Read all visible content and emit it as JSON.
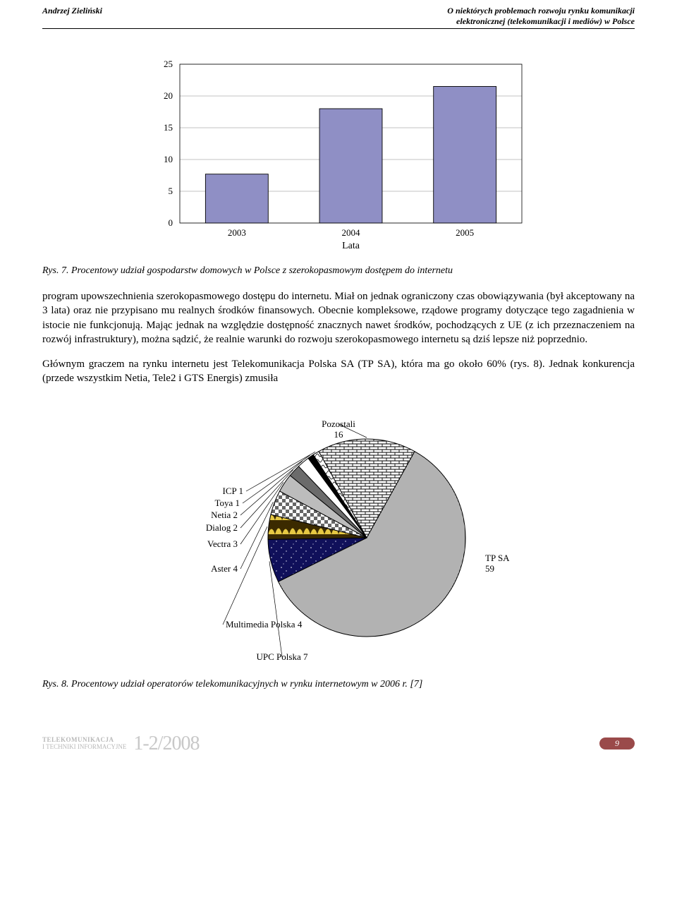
{
  "header": {
    "author": "Andrzej Zieliński",
    "title_line1": "O niektórych problemach rozwoju rynku komunikacji",
    "title_line2": "elektronicznej (telekomunikacji i mediów) w Polsce"
  },
  "bar_chart": {
    "type": "bar",
    "categories": [
      "2003",
      "2004",
      "2005"
    ],
    "values": [
      7.7,
      18,
      21.5
    ],
    "ylim": [
      0,
      25
    ],
    "ytick_step": 5,
    "yticks": [
      "0",
      "5",
      "10",
      "15",
      "20",
      "25"
    ],
    "xlabel": "Lata",
    "bar_fill": "#8f8fc5",
    "bar_stroke": "#000000",
    "grid_color": "#888888",
    "background_color": "#ffffff",
    "bar_width": 0.55,
    "label_fontsize": 13
  },
  "fig7": {
    "label": "Rys. 7.",
    "caption": "Procentowy udział gospodarstw domowych w Polsce z szerokopasmowym dostępem do internetu"
  },
  "para1": "program upowszechnienia szerokopasmowego dostępu do internetu. Miał on jednak ograniczony czas obowiązywania (był akceptowany na 3 lata) oraz nie przypisano mu realnych środków finansowych. Obecnie kompleksowe, rządowe programy dotyczące tego zagadnienia w istocie nie funkcjonują. Mając jednak na względzie dostępność znacznych nawet środków, pochodzących z UE (z ich przeznaczeniem na rozwój infrastruktury), można sądzić, że realnie warunki do rozwoju szerokopasmowego internetu są dziś lepsze niż poprzednio.",
  "para2": "Głównym graczem na rynku internetu jest Telekomunikacja Polska SA (TP SA), która ma go około 60% (rys. 8). Jednak konkurencja (przede wszystkim Netia, Tele2 i GTS Energis) zmusiła",
  "pie_chart": {
    "type": "pie",
    "slices": [
      {
        "label": "Pozostali",
        "value": 16,
        "text": "Pozostali\n16"
      },
      {
        "label": "TP SA",
        "value": 59,
        "text": "TP SA\n59"
      },
      {
        "label": "UPC Polska",
        "value": 7,
        "text": "UPC Polska 7"
      },
      {
        "label": "Multimedia Polska",
        "value": 4,
        "text": "Multimedia Polska 4"
      },
      {
        "label": "Aster",
        "value": 4,
        "text": "Aster 4"
      },
      {
        "label": "Vectra",
        "value": 3,
        "text": "Vectra 3"
      },
      {
        "label": "Dialog",
        "value": 2,
        "text": "Dialog 2"
      },
      {
        "label": "Netia",
        "value": 2,
        "text": "Netia 2"
      },
      {
        "label": "Toya",
        "value": 1,
        "text": "Toya 1"
      },
      {
        "label": "ICP",
        "value": 1,
        "text": "ICP 1"
      }
    ],
    "stroke": "#000000",
    "label_fontsize": 13
  },
  "fig8": {
    "label": "Rys. 8.",
    "caption": "Procentowy udział operatorów telekomunikacyjnych w rynku internetowym w 2006 r. [7]"
  },
  "footer": {
    "journal_line1": "TELEKOMUNIKACJA",
    "journal_line2": "I TECHNIKI INFORMACYJNE",
    "issue": "1-2/2008",
    "page": "9"
  }
}
